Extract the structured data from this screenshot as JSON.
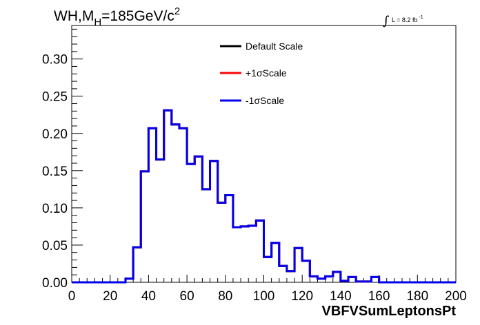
{
  "title": {
    "main": "WH,M",
    "sub": "H",
    "rest": "=185GeV/c",
    "sup": "2"
  },
  "lumi": {
    "integral": "∫",
    "text": "L = 8.2 fb",
    "sup": "-1"
  },
  "chart_data": {
    "type": "line",
    "xlabel": "VBFVSumLeptonsPt",
    "ylabel": "",
    "xlim": [
      0,
      200
    ],
    "ylim": [
      0,
      0.345
    ],
    "x_ticks": [
      "0",
      "20",
      "40",
      "60",
      "80",
      "100",
      "120",
      "140",
      "160",
      "180",
      "200"
    ],
    "y_ticks": [
      "0.00",
      "0.05",
      "0.10",
      "0.15",
      "0.20",
      "0.25",
      "0.30"
    ],
    "grid": false,
    "legend_position": "top",
    "bin_edges": [
      0,
      4,
      8,
      12,
      16,
      20,
      24,
      28,
      32,
      36,
      40,
      44,
      48,
      52,
      56,
      60,
      64,
      68,
      72,
      76,
      80,
      84,
      88,
      92,
      96,
      100,
      104,
      108,
      112,
      116,
      120,
      124,
      128,
      132,
      136,
      140,
      144,
      148,
      152,
      156,
      160,
      164,
      168,
      172,
      176,
      180,
      184,
      188,
      192,
      196,
      200
    ],
    "series": [
      {
        "name": "Default Scale",
        "color": "#000000",
        "values": [
          0,
          0,
          0,
          0,
          0,
          0,
          0,
          0.005,
          0.047,
          0.149,
          0.207,
          0.165,
          0.231,
          0.212,
          0.207,
          0.159,
          0.169,
          0.125,
          0.163,
          0.107,
          0.117,
          0.074,
          0.075,
          0.076,
          0.083,
          0.034,
          0.053,
          0.022,
          0.015,
          0.046,
          0.029,
          0.008,
          0.005,
          0.008,
          0.014,
          0.002,
          0.007,
          0.001,
          0.001,
          0.007,
          0,
          0,
          0,
          0,
          0,
          0,
          0,
          0,
          0,
          0
        ]
      },
      {
        "name": "+1σScale",
        "color": "#ff0000",
        "values": [
          0,
          0,
          0,
          0,
          0,
          0,
          0,
          0.005,
          0.047,
          0.149,
          0.207,
          0.165,
          0.231,
          0.212,
          0.207,
          0.159,
          0.169,
          0.125,
          0.163,
          0.107,
          0.117,
          0.074,
          0.075,
          0.076,
          0.083,
          0.034,
          0.053,
          0.022,
          0.015,
          0.046,
          0.029,
          0.008,
          0.005,
          0.008,
          0.014,
          0.002,
          0.007,
          0.001,
          0.001,
          0.007,
          0,
          0,
          0,
          0,
          0,
          0,
          0,
          0,
          0,
          0
        ]
      },
      {
        "name": "-1σScale",
        "color": "#0000ee",
        "values": [
          0,
          0,
          0,
          0,
          0,
          0,
          0,
          0.005,
          0.047,
          0.149,
          0.207,
          0.165,
          0.231,
          0.212,
          0.207,
          0.159,
          0.169,
          0.125,
          0.163,
          0.107,
          0.117,
          0.074,
          0.075,
          0.076,
          0.083,
          0.034,
          0.053,
          0.022,
          0.015,
          0.046,
          0.029,
          0.008,
          0.005,
          0.008,
          0.014,
          0.002,
          0.007,
          0.001,
          0.001,
          0.007,
          0,
          0,
          0,
          0,
          0,
          0,
          0,
          0,
          0,
          0
        ]
      }
    ]
  }
}
